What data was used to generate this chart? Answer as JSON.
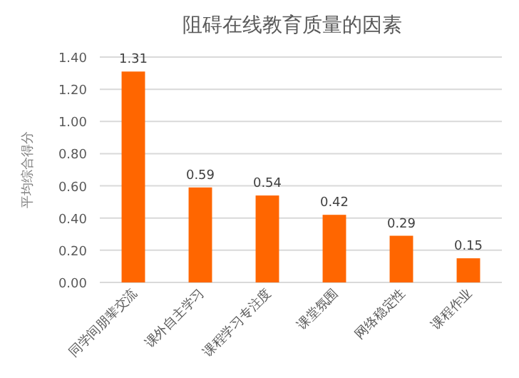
{
  "chart_data": {
    "type": "bar",
    "title": "阻碍在线教育质量的因素",
    "ylabel": "平均综合得分",
    "categories": [
      "同学间朋辈交流",
      "课外自主学习",
      "课程学习专注度",
      "课堂氛围",
      "网络稳定性",
      "课程作业"
    ],
    "values": [
      1.31,
      0.59,
      0.54,
      0.42,
      0.29,
      0.15
    ],
    "color": "#ff6600",
    "data_labels": true,
    "grid": "y",
    "ylim": [
      0,
      1.4
    ],
    "yticks": [
      {
        "value": 0,
        "label": "0.00"
      },
      {
        "value": 0.2,
        "label": "0.20"
      },
      {
        "value": 0.4,
        "label": "0.40"
      },
      {
        "value": 0.6,
        "label": "0.60"
      },
      {
        "value": 0.8,
        "label": "0.80"
      },
      {
        "value": 1.0,
        "label": "1.00"
      },
      {
        "value": 1.2,
        "label": "1.20"
      },
      {
        "value": 1.4,
        "label": "1.40"
      }
    ]
  }
}
